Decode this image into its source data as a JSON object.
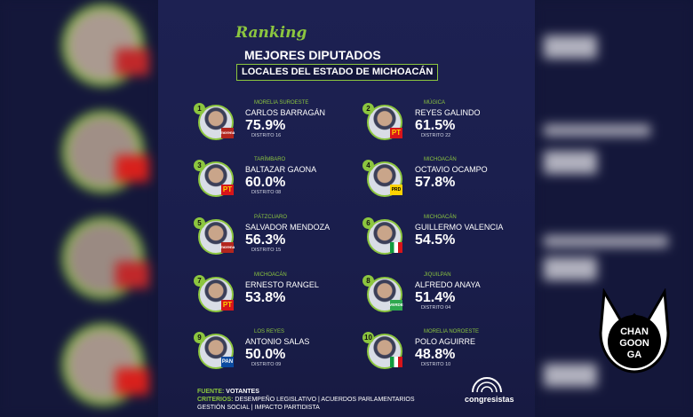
{
  "header": {
    "kicker": "Ranking",
    "title": "MEJORES DIPUTADOS",
    "subtitle": "LOCALES DEL ESTADO DE MICHOACÁN"
  },
  "entries": [
    {
      "rank": "1",
      "region": "MORELIA SUROESTE",
      "name": "CARLOS BARRAGÁN",
      "percent": "75.9%",
      "district": "DISTRITO 16",
      "party": "morena"
    },
    {
      "rank": "2",
      "region": "MÚGICA",
      "name": "REYES GALINDO",
      "percent": "61.5%",
      "district": "DISTRITO 22",
      "party": "PT"
    },
    {
      "rank": "3",
      "region": "TARÍMBARO",
      "name": "BALTAZAR GAONA",
      "percent": "60.0%",
      "district": "DISTRITO 08",
      "party": "PT"
    },
    {
      "rank": "4",
      "region": "MICHOACÁN",
      "name": "OCTAVIO OCAMPO",
      "percent": "57.8%",
      "party": "PRD"
    },
    {
      "rank": "5",
      "region": "PÁTZCUARO",
      "name": "SALVADOR MENDOZA",
      "percent": "56.3%",
      "district": "DISTRITO 15",
      "party": "morena"
    },
    {
      "rank": "6",
      "region": "MICHOACÁN",
      "name": "GUILLERMO VALENCIA",
      "percent": "54.5%",
      "party": "PRI"
    },
    {
      "rank": "7",
      "region": "MICHOACÁN",
      "name": "ERNESTO RANGEL",
      "percent": "53.8%",
      "party": "PT"
    },
    {
      "rank": "8",
      "region": "JIQUILPAN",
      "name": "ALFREDO ANAYA",
      "percent": "51.4%",
      "district": "DISTRITO 04",
      "party": "VERDE"
    },
    {
      "rank": "9",
      "region": "LOS REYES",
      "name": "ANTONIO SALAS",
      "percent": "50.0%",
      "district": "DISTRITO 09",
      "party": "PAN"
    },
    {
      "rank": "10",
      "region": "MORELIA NOROESTE",
      "name": "POLO AGUIRRE",
      "percent": "48.8%",
      "district": "DISTRITO 10",
      "party": "PRI"
    }
  ],
  "footer": {
    "source_label": "FUENTE:",
    "source": "VOTANTES",
    "criteria_label": "CRITERIOS:",
    "criteria_line1": "DESEMPEÑO LEGISLATIVO | ACUERDOS PARLAMENTARIOS",
    "criteria_line2": "GESTIÓN SOCIAL | IMPACTO PARTIDISTA",
    "brand": "congresistas"
  },
  "logo": {
    "line1": "CHAN",
    "line2": "GOON",
    "line3": "GA"
  }
}
